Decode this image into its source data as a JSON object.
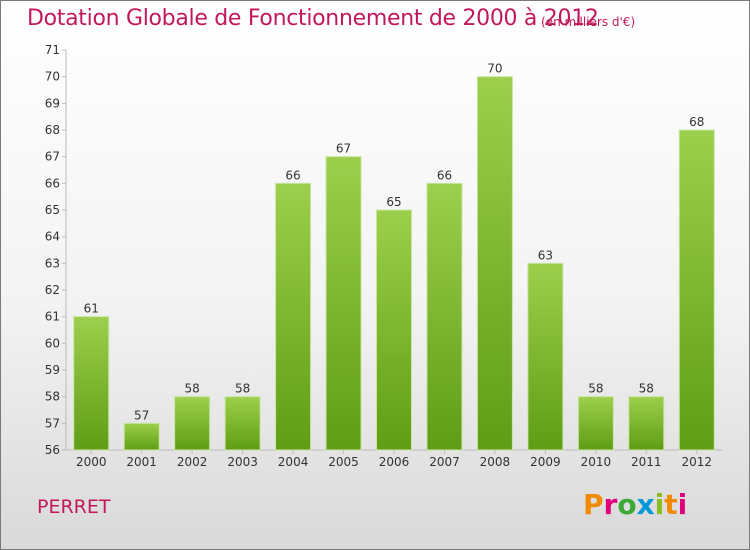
{
  "title": "Dotation Globale de Fonctionnement de 2000 à 2012",
  "unit_note": "(en milliers d'€)",
  "commune": "PERRET",
  "logo": {
    "text": "Proxiti",
    "colors": [
      "#f08a00",
      "#e1007a",
      "#3aaa35",
      "#0099d8",
      "#8cbd1e",
      "#f08a00",
      "#e1007a"
    ]
  },
  "colors": {
    "bar_top": "#9ccf4c",
    "bar_bottom": "#5f9d16",
    "title": "#c2185b"
  },
  "chart_data": {
    "type": "bar",
    "title": "Dotation Globale de Fonctionnement de 2000 à 2012",
    "xlabel": "",
    "ylabel": "",
    "categories": [
      "2000",
      "2001",
      "2002",
      "2003",
      "2004",
      "2005",
      "2006",
      "2007",
      "2008",
      "2009",
      "2010",
      "2011",
      "2012"
    ],
    "values": [
      61,
      57,
      58,
      58,
      66,
      67,
      65,
      66,
      70,
      63,
      58,
      58,
      68
    ],
    "ylim": [
      56,
      71
    ],
    "yticks": [
      56,
      57,
      58,
      59,
      60,
      61,
      62,
      63,
      64,
      65,
      66,
      67,
      68,
      69,
      70,
      71
    ],
    "grid": false,
    "legend": "none"
  }
}
